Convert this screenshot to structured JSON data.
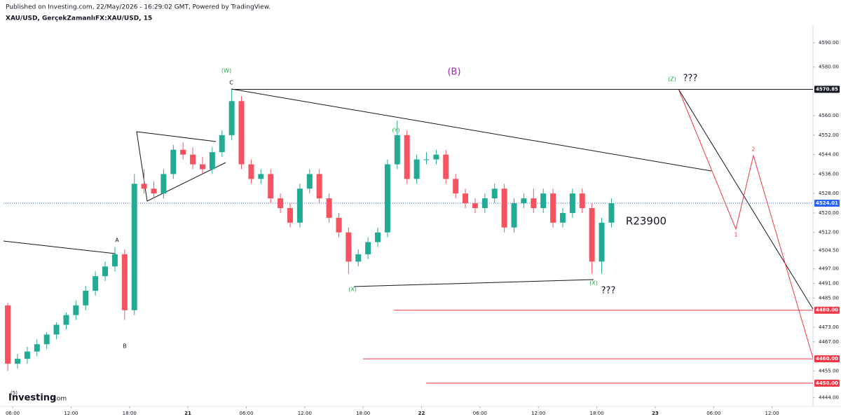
{
  "header": {
    "published": "Published on Investing.com, 22/May/2026 - 16:29:02 GMT, Powered by TradingView.",
    "symbol": "XAU/USD, GerçekZamanlıFX:XAU/USD, 15"
  },
  "logo": {
    "name": "Investing",
    "suffix": ".com"
  },
  "chart_data": {
    "type": "candlestick",
    "up_color": "#22ab94",
    "down_color": "#f7525f",
    "candles": {
      "x": [
        5.5,
        6.5,
        7.5,
        8.5,
        9.5,
        10.5,
        11.5,
        12.5,
        13.5,
        14.5,
        15.5,
        16.5,
        17.5,
        18.5,
        19.5,
        20.5,
        21.5,
        22.5,
        23.5,
        24.5,
        25.5,
        26.5,
        27.5,
        28.5,
        29.5,
        30.5,
        31.5,
        32.5,
        33.5,
        34.5,
        35.5,
        36.5,
        37.5,
        38.5,
        39.5,
        40.5,
        41.5,
        42.5,
        43.5,
        44.5,
        45.5,
        46.5,
        47.5,
        48.5,
        49.5,
        50.5,
        51.5,
        52.5,
        53.5,
        54.5,
        55.5,
        56.5,
        57.5,
        58.5,
        59.5,
        60.5,
        61.5,
        62.5,
        63.5,
        64.5,
        65.5,
        66.5,
        67.5
      ],
      "open": [
        4482,
        4458,
        4460,
        4463,
        4466,
        4470,
        4474,
        4478,
        4482,
        4488,
        4494,
        4498,
        4503,
        4480,
        4532,
        4530,
        4528,
        4536,
        4546,
        4544,
        4540,
        4538,
        4545,
        4552,
        4566,
        4540,
        4534,
        4536,
        4526,
        4522,
        4516,
        4530,
        4536,
        4526,
        4518,
        4512,
        4500,
        4503,
        4508,
        4512,
        4540,
        4552,
        4534,
        4542,
        4542,
        4544,
        4534,
        4528,
        4524,
        4522,
        4526,
        4530,
        4514,
        4524,
        4526,
        4522,
        4528,
        4516,
        4520,
        4528,
        4522,
        4500,
        4516
      ],
      "high": [
        4483,
        4462,
        4465,
        4468,
        4471,
        4475,
        4479,
        4484,
        4490,
        4496,
        4500,
        4506,
        4505,
        4536,
        4538,
        4533,
        4538,
        4548,
        4549,
        4547,
        4543,
        4547,
        4554,
        4570.85,
        4568,
        4542,
        4538,
        4538,
        4528,
        4524,
        4532,
        4538,
        4538,
        4528,
        4520,
        4514,
        4505,
        4510,
        4514,
        4542,
        4558,
        4554,
        4544,
        4545,
        4546,
        4546,
        4536,
        4530,
        4526,
        4528,
        4532,
        4532,
        4526,
        4528,
        4530,
        4530,
        4530,
        4522,
        4530,
        4530,
        4524,
        4518,
        4526
      ],
      "low": [
        4455,
        4456,
        4458,
        4461,
        4464,
        4468,
        4472,
        4476,
        4480,
        4486,
        4492,
        4496,
        4476,
        4478,
        4528,
        4526,
        4526,
        4534,
        4542,
        4538,
        4536,
        4536,
        4543,
        4550,
        4538,
        4532,
        4532,
        4524,
        4520,
        4514,
        4514,
        4528,
        4524,
        4516,
        4510,
        4495,
        4498,
        4501,
        4506,
        4510,
        4538,
        4532,
        4532,
        4540,
        4540,
        4532,
        4526,
        4522,
        4520,
        4520,
        4524,
        4512,
        4512,
        4522,
        4520,
        4520,
        4514,
        4514,
        4518,
        4520,
        4495,
        4495,
        4514
      ],
      "close": [
        4458,
        4460,
        4463,
        4466,
        4470,
        4474,
        4478,
        4482,
        4488,
        4494,
        4498,
        4503,
        4480,
        4532,
        4530,
        4528,
        4536,
        4546,
        4544,
        4540,
        4538,
        4545,
        4552,
        4566,
        4540,
        4534,
        4536,
        4526,
        4522,
        4516,
        4530,
        4536,
        4526,
        4518,
        4512,
        4500,
        4503,
        4508,
        4512,
        4540,
        4552,
        4534,
        4542,
        4542,
        4544,
        4534,
        4528,
        4524,
        4522,
        4526,
        4530,
        4514,
        4524,
        4526,
        4522,
        4528,
        4516,
        4520,
        4528,
        4522,
        4500,
        4516,
        4524.01
      ]
    },
    "xlim": [
      5.06,
      88.2
    ],
    "xticks": [
      {
        "value": 6,
        "label": "06:00"
      },
      {
        "value": 12,
        "label": "12:00"
      },
      {
        "value": 18,
        "label": "18:00"
      },
      {
        "value": 24,
        "label": "21"
      },
      {
        "value": 30,
        "label": "06:00"
      },
      {
        "value": 36,
        "label": "12:00"
      },
      {
        "value": 42,
        "label": "18:00"
      },
      {
        "value": 48,
        "label": "22"
      },
      {
        "value": 54,
        "label": "06:00"
      },
      {
        "value": 60,
        "label": "12:00"
      },
      {
        "value": 66,
        "label": "18:00"
      },
      {
        "value": 72,
        "label": "23"
      },
      {
        "value": 78,
        "label": "06:00"
      },
      {
        "value": 84,
        "label": "12:00"
      }
    ],
    "ylim": [
      4439,
      4597.5
    ],
    "yticks": [
      {
        "value": 4590,
        "label": "4590.00"
      },
      {
        "value": 4580,
        "label": "4580.00"
      },
      {
        "value": 4560,
        "label": "4560.00"
      },
      {
        "value": 4552,
        "label": "4552.00"
      },
      {
        "value": 4544,
        "label": "4544.00"
      },
      {
        "value": 4536,
        "label": "4536.00"
      },
      {
        "value": 4528,
        "label": "4528.00"
      },
      {
        "value": 4520,
        "label": "4520.00"
      },
      {
        "value": 4512,
        "label": "4512.00"
      },
      {
        "value": 4504.5,
        "label": "4504.50"
      },
      {
        "value": 4497,
        "label": "4497.00"
      },
      {
        "value": 4491,
        "label": "4491.00"
      },
      {
        "value": 4485,
        "label": "4485.00"
      },
      {
        "value": 4473,
        "label": "4473.00"
      },
      {
        "value": 4467,
        "label": "4467.00"
      },
      {
        "value": 4455,
        "label": "4455.00"
      },
      {
        "value": 4444,
        "label": "4444.00"
      }
    ],
    "price_lines": [
      {
        "value": 4480,
        "label": "4480.00",
        "color": "#f23645"
      },
      {
        "value": 4460,
        "label": "4460.00",
        "color": "#f23645"
      },
      {
        "value": 4450,
        "label": "4450.00",
        "color": "#f23645"
      }
    ],
    "price_markers": [
      {
        "value": 4570.85,
        "label": "4570.85",
        "color": "#131722"
      },
      {
        "value": 4524.01,
        "label": "4524.01",
        "color": "#2962ff"
      }
    ],
    "annotations": [
      "(W)",
      "C",
      "(B)",
      "(Y)",
      "(X)",
      "(X)",
      "???",
      "(Z)",
      "???",
      "R23900",
      "A",
      "B",
      "1",
      "2",
      "(5)"
    ]
  }
}
